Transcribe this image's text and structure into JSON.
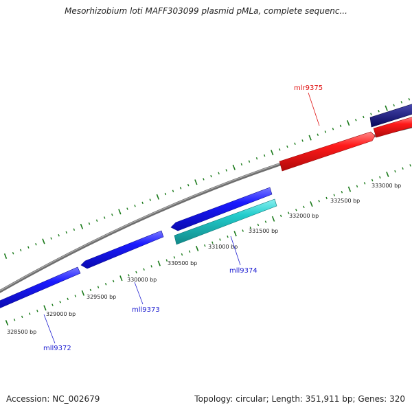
{
  "title": "Mesorhizobium loti MAFF303099 plasmid pMLa, complete sequenc...",
  "footer": {
    "accession": "Accession: NC_002679",
    "stats": "Topology: circular; Length: 351,911 bp; Genes: 320"
  },
  "bp_ticks": [
    "328500 bp",
    "329000 bp",
    "329500 bp",
    "330000 bp",
    "330500 bp",
    "331000 bp",
    "331500 bp",
    "332000 bp",
    "332500 bp",
    "333000 bp"
  ],
  "genes": [
    {
      "label": "mll9372",
      "strand": "reverse",
      "color": "#1010ee"
    },
    {
      "label": "mll9373",
      "strand": "reverse",
      "color": "#1010ee"
    },
    {
      "label": "mll9374",
      "strand": "reverse",
      "color": "#1010ee"
    },
    {
      "label": "mlr9375",
      "strand": "forward",
      "color": "#ee1010"
    }
  ],
  "colors": {
    "backbone": "#8a8a8a",
    "tick": "#1a7a1a",
    "reverse_gene": "#1010ee",
    "forward_gene": "#ee1010",
    "cyan_feature": "#18c4c4",
    "navy_feature": "#0a0a7a"
  }
}
